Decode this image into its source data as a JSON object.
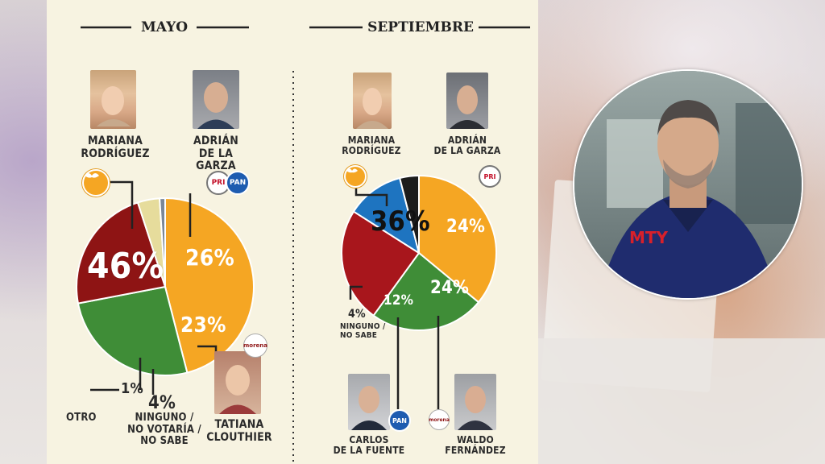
{
  "chart_data": [
    {
      "type": "pie",
      "title": "MAYO",
      "slices": [
        {
          "label": "MARIANA RODRÍGUEZ",
          "value": 46,
          "display": "46%",
          "color": "#f5a623"
        },
        {
          "label": "ADRIÁN DE LA GARZA",
          "value": 26,
          "display": "26%",
          "color": "#3f8d37"
        },
        {
          "label": "TATIANA CLOUTHIER",
          "value": 23,
          "display": "23%",
          "color": "#8e1414"
        },
        {
          "label": "NINGUNO / NO VOTARÍA / NO SABE",
          "value": 4,
          "display": "4%",
          "color": "#e6dc9c"
        },
        {
          "label": "OTRO",
          "value": 1,
          "display": "1%",
          "color": "#7a8798"
        }
      ]
    },
    {
      "type": "pie",
      "title": "SEPTIEMBRE",
      "slices": [
        {
          "label": "MARIANA RODRÍGUEZ",
          "value": 36,
          "display": "36%",
          "color": "#f5a623"
        },
        {
          "label": "ADRIÁN DE LA GARZA",
          "value": 24,
          "display": "24%",
          "color": "#3f8d37"
        },
        {
          "label": "WALDO FERNÁNDEZ",
          "value": 24,
          "display": "24%",
          "color": "#a8161c"
        },
        {
          "label": "CARLOS DE LA FUENTE",
          "value": 12,
          "display": "12%",
          "color": "#1e74c0"
        },
        {
          "label": "NINGUNO / NO SABE",
          "value": 4,
          "display": "4%",
          "color": "#1c1c1c"
        }
      ]
    }
  ],
  "labels": {
    "mayo": {
      "mariana_l1": "MARIANA",
      "mariana_l2": "RODRÍGUEZ",
      "adrian_l1": "ADRIÁN",
      "adrian_l2": "DE LA GARZA",
      "tatiana_l1": "TATIANA",
      "tatiana_l2": "CLOUTHIER",
      "ninguno_l1": "NINGUNO /",
      "ninguno_l2": "NO VOTARÍA /",
      "ninguno_l3": "NO SABE",
      "otro": "OTRO"
    },
    "septiembre": {
      "mariana_l1": "MARIANA",
      "mariana_l2": "RODRÍGUEZ",
      "adrian_l1": "ADRIÁN",
      "adrian_l2": "DE LA GARZA",
      "ninguno_l1": "NINGUNO /",
      "ninguno_l2": "NO SABE",
      "carlos_l1": "CARLOS",
      "carlos_l2": "DE LA FUENTE",
      "waldo_l1": "WALDO",
      "waldo_l2": "FERNÁNDEZ"
    }
  },
  "badges": {
    "pri": "PRI",
    "pan": "PAN",
    "morena": "morena"
  },
  "inset_shirt_logo": "MTY"
}
